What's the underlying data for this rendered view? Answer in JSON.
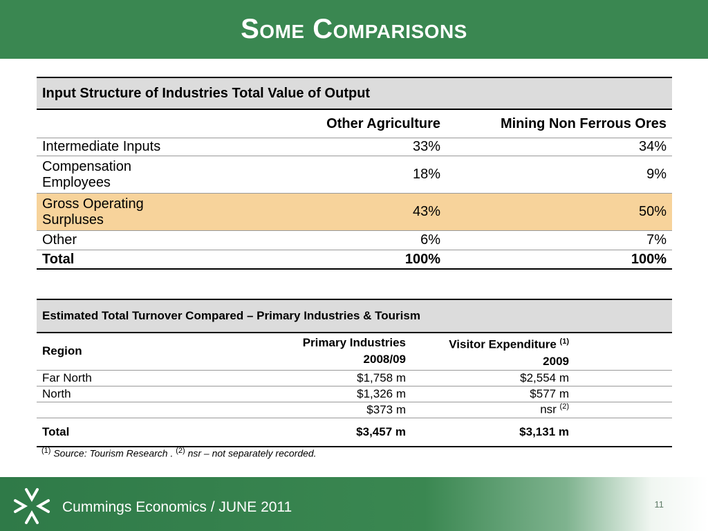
{
  "slide": {
    "title": "Some Comparisons",
    "page_number": "11",
    "footer_text": "Cummings Economics / JUNE 2011"
  },
  "table1": {
    "caption": "Input Structure of Industries Total Value of Output",
    "columns": [
      "Other Agriculture",
      "Mining Non Ferrous Ores"
    ],
    "rows": [
      {
        "label": "Intermediate Inputs",
        "values": [
          "33%",
          "34%"
        ]
      },
      {
        "label_lines": [
          "Compensation",
          "Employees"
        ],
        "values": [
          "18%",
          "9%"
        ]
      },
      {
        "label_lines": [
          "Gross Operating",
          "Surpluses"
        ],
        "values": [
          "43%",
          "50%"
        ]
      },
      {
        "label": "Other",
        "values": [
          "6%",
          "7%"
        ]
      }
    ],
    "total": {
      "label": "Total",
      "values": [
        "100%",
        "100%"
      ]
    },
    "highlight_color": "#f7d39b"
  },
  "table2": {
    "caption": "Estimated Total Turnover Compared – Primary Industries & Tourism",
    "region_header": "Region",
    "col1_header": [
      "Primary Industries",
      "2008/09"
    ],
    "col2_header": [
      "Visitor Expenditure",
      "2009"
    ],
    "col2_header_sup": "(1)",
    "rows": [
      {
        "region": "Far North",
        "primary": "$1,758 m",
        "visitor": "$2,554 m",
        "visitor_sup": ""
      },
      {
        "region": "North",
        "primary": "$1,326 m",
        "visitor": "$577 m",
        "visitor_sup": ""
      },
      {
        "region": "",
        "primary": "$373 m",
        "visitor": "nsr",
        "visitor_sup": "(2)"
      }
    ],
    "total": {
      "label": "Total",
      "primary": "$3,457 m",
      "visitor": "$3,131 m"
    }
  },
  "footnote": {
    "sup1": "(1)",
    "text1": "Source:  Tourism Research .",
    "sup2": "(2)",
    "text2": "nsr – not separately recorded."
  },
  "colors": {
    "header_green": "#3a8751",
    "caption_grey": "#dcdcdc"
  }
}
